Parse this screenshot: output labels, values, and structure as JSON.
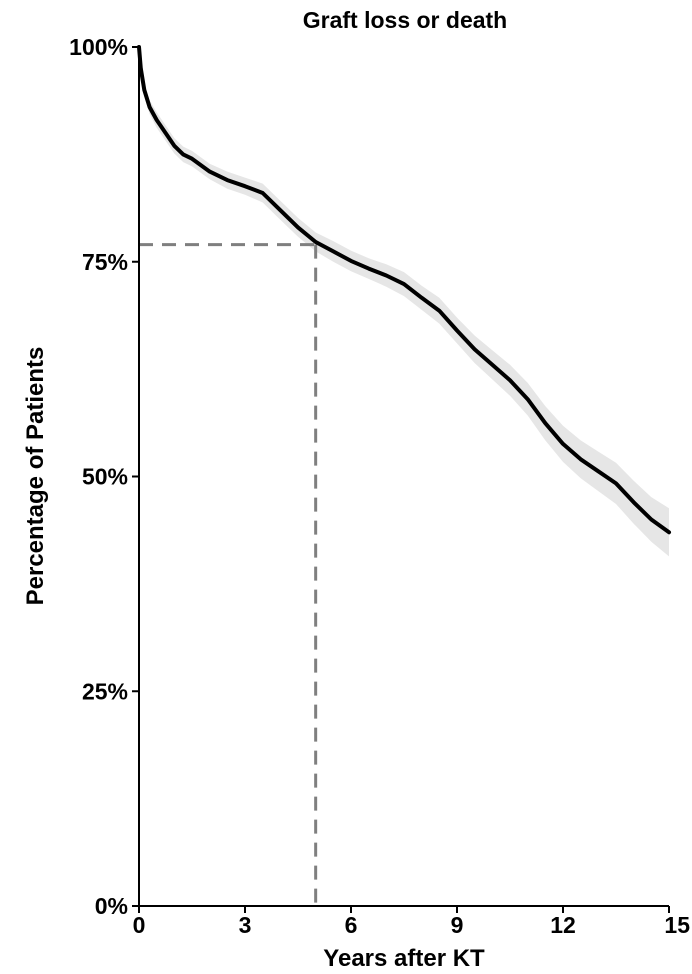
{
  "colors": {
    "curve": "#000000",
    "ci_band": "#e6e6e6",
    "reference_line": "#7f7f7f",
    "axis": "#000000",
    "background": "#ffffff"
  },
  "chart_data": {
    "type": "line",
    "title": "Graft loss or death",
    "xlabel": "Years after KT",
    "ylabel": "Percentage of Patients",
    "xlim": [
      0,
      15
    ],
    "ylim": [
      0,
      100
    ],
    "x_ticks": [
      0,
      3,
      6,
      9,
      12,
      15
    ],
    "x_tick_labels": [
      "0",
      "3",
      "6",
      "9",
      "12",
      "15"
    ],
    "y_ticks": [
      0,
      25,
      50,
      75,
      100
    ],
    "y_tick_labels": [
      "0%",
      "25%",
      "50%",
      "75%",
      "100%"
    ],
    "grid": false,
    "legend": "none",
    "series": [
      {
        "x": [
          0,
          0.05,
          0.15,
          0.3,
          0.5,
          0.75,
          1.0,
          1.25,
          1.5,
          2.0,
          2.5,
          3.0,
          3.5,
          4.0,
          4.5,
          5.0,
          5.5,
          6.0,
          6.5,
          7.0,
          7.5,
          8.0,
          8.5,
          9.0,
          9.5,
          10.0,
          10.5,
          11.0,
          11.5,
          12.0,
          12.5,
          13.0,
          13.5,
          14.0,
          14.5,
          15.0
        ],
        "y": [
          100,
          97.5,
          95.0,
          93.0,
          91.5,
          90.0,
          88.5,
          87.5,
          87.0,
          85.5,
          84.5,
          83.8,
          83.0,
          81.0,
          79.0,
          77.3,
          76.2,
          75.1,
          74.2,
          73.4,
          72.4,
          70.8,
          69.3,
          67.0,
          64.8,
          63.0,
          61.2,
          59.0,
          56.2,
          53.8,
          52.0,
          50.6,
          49.2,
          47.0,
          45.0,
          43.5
        ],
        "ci_lower": [
          100,
          96.8,
          94.2,
          92.2,
          90.6,
          89.1,
          87.6,
          86.6,
          86.1,
          84.6,
          83.5,
          82.8,
          81.9,
          79.9,
          77.9,
          76.2,
          75.0,
          73.9,
          73.0,
          72.1,
          71.0,
          69.4,
          67.8,
          65.5,
          63.2,
          61.3,
          59.4,
          57.1,
          54.2,
          51.7,
          49.8,
          48.3,
          46.8,
          44.5,
          42.4,
          40.7
        ],
        "ci_upper": [
          100,
          98.2,
          95.8,
          93.8,
          92.4,
          90.9,
          89.4,
          88.4,
          87.9,
          86.4,
          85.5,
          84.8,
          84.1,
          82.1,
          80.1,
          78.4,
          77.4,
          76.3,
          75.4,
          74.7,
          73.8,
          72.2,
          70.8,
          68.5,
          66.4,
          64.7,
          63.0,
          60.9,
          58.2,
          55.9,
          54.2,
          52.9,
          51.6,
          49.5,
          47.6,
          46.3
        ]
      }
    ],
    "reference_lines": {
      "x": 5,
      "y": 77
    }
  }
}
